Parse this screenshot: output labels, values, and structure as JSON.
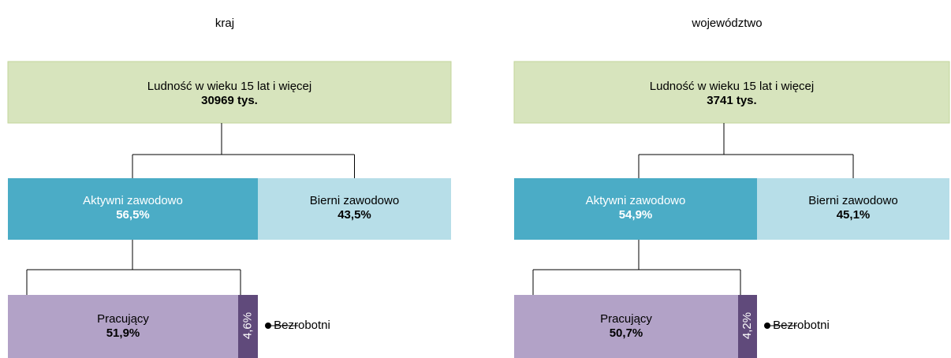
{
  "panels": [
    {
      "title": "kraj",
      "population": {
        "label": "Ludność w wieku 15 lat i więcej",
        "value": "30969 tys."
      },
      "active": {
        "label": "Aktywni zawodowo",
        "value": "56,5%"
      },
      "inactive": {
        "label": "Bierni zawodowo",
        "value": "43,5%"
      },
      "employed": {
        "label": "Pracujący",
        "value": "51,9%"
      },
      "unemployed": {
        "label": "Bezrobotni",
        "value": "4,6%"
      }
    },
    {
      "title": "województwo",
      "population": {
        "label": "Ludność w wieku 15 lat i więcej",
        "value": "3741 tys."
      },
      "active": {
        "label": "Aktywni zawodowo",
        "value": "54,9%"
      },
      "inactive": {
        "label": "Bierni zawodowo",
        "value": "45,1%"
      },
      "employed": {
        "label": "Pracujący",
        "value": "50,7%"
      },
      "unemployed": {
        "label": "Bezrobotni",
        "value": "4,2%"
      }
    }
  ]
}
